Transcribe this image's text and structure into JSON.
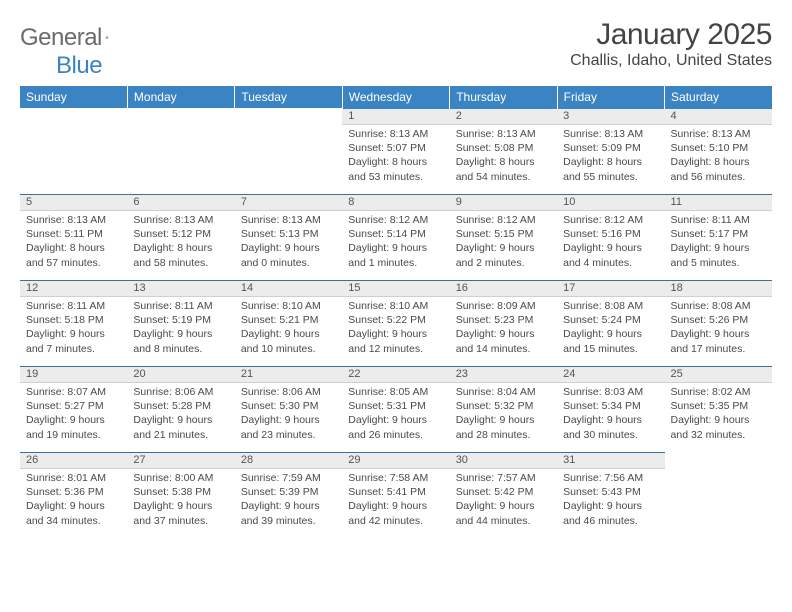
{
  "logo": {
    "part1": "General",
    "part2": "Blue"
  },
  "title": "January 2025",
  "location": "Challis, Idaho, United States",
  "colors": {
    "header_bg": "#3b84c4",
    "daynum_bg": "#ececec",
    "rule": "#3b6fa0",
    "text": "#4a4a4a",
    "logo_gray": "#6b6b6b",
    "logo_blue": "#3b84c4"
  },
  "weekdays": [
    "Sunday",
    "Monday",
    "Tuesday",
    "Wednesday",
    "Thursday",
    "Friday",
    "Saturday"
  ],
  "weeks": [
    [
      null,
      null,
      null,
      {
        "n": "1",
        "sunrise": "8:13 AM",
        "sunset": "5:07 PM",
        "dl_h": "8",
        "dl_m": "53"
      },
      {
        "n": "2",
        "sunrise": "8:13 AM",
        "sunset": "5:08 PM",
        "dl_h": "8",
        "dl_m": "54"
      },
      {
        "n": "3",
        "sunrise": "8:13 AM",
        "sunset": "5:09 PM",
        "dl_h": "8",
        "dl_m": "55"
      },
      {
        "n": "4",
        "sunrise": "8:13 AM",
        "sunset": "5:10 PM",
        "dl_h": "8",
        "dl_m": "56"
      }
    ],
    [
      {
        "n": "5",
        "sunrise": "8:13 AM",
        "sunset": "5:11 PM",
        "dl_h": "8",
        "dl_m": "57"
      },
      {
        "n": "6",
        "sunrise": "8:13 AM",
        "sunset": "5:12 PM",
        "dl_h": "8",
        "dl_m": "58"
      },
      {
        "n": "7",
        "sunrise": "8:13 AM",
        "sunset": "5:13 PM",
        "dl_h": "9",
        "dl_m": "0"
      },
      {
        "n": "8",
        "sunrise": "8:12 AM",
        "sunset": "5:14 PM",
        "dl_h": "9",
        "dl_m": "1"
      },
      {
        "n": "9",
        "sunrise": "8:12 AM",
        "sunset": "5:15 PM",
        "dl_h": "9",
        "dl_m": "2"
      },
      {
        "n": "10",
        "sunrise": "8:12 AM",
        "sunset": "5:16 PM",
        "dl_h": "9",
        "dl_m": "4"
      },
      {
        "n": "11",
        "sunrise": "8:11 AM",
        "sunset": "5:17 PM",
        "dl_h": "9",
        "dl_m": "5"
      }
    ],
    [
      {
        "n": "12",
        "sunrise": "8:11 AM",
        "sunset": "5:18 PM",
        "dl_h": "9",
        "dl_m": "7"
      },
      {
        "n": "13",
        "sunrise": "8:11 AM",
        "sunset": "5:19 PM",
        "dl_h": "9",
        "dl_m": "8"
      },
      {
        "n": "14",
        "sunrise": "8:10 AM",
        "sunset": "5:21 PM",
        "dl_h": "9",
        "dl_m": "10"
      },
      {
        "n": "15",
        "sunrise": "8:10 AM",
        "sunset": "5:22 PM",
        "dl_h": "9",
        "dl_m": "12"
      },
      {
        "n": "16",
        "sunrise": "8:09 AM",
        "sunset": "5:23 PM",
        "dl_h": "9",
        "dl_m": "14"
      },
      {
        "n": "17",
        "sunrise": "8:08 AM",
        "sunset": "5:24 PM",
        "dl_h": "9",
        "dl_m": "15"
      },
      {
        "n": "18",
        "sunrise": "8:08 AM",
        "sunset": "5:26 PM",
        "dl_h": "9",
        "dl_m": "17"
      }
    ],
    [
      {
        "n": "19",
        "sunrise": "8:07 AM",
        "sunset": "5:27 PM",
        "dl_h": "9",
        "dl_m": "19"
      },
      {
        "n": "20",
        "sunrise": "8:06 AM",
        "sunset": "5:28 PM",
        "dl_h": "9",
        "dl_m": "21"
      },
      {
        "n": "21",
        "sunrise": "8:06 AM",
        "sunset": "5:30 PM",
        "dl_h": "9",
        "dl_m": "23"
      },
      {
        "n": "22",
        "sunrise": "8:05 AM",
        "sunset": "5:31 PM",
        "dl_h": "9",
        "dl_m": "26"
      },
      {
        "n": "23",
        "sunrise": "8:04 AM",
        "sunset": "5:32 PM",
        "dl_h": "9",
        "dl_m": "28"
      },
      {
        "n": "24",
        "sunrise": "8:03 AM",
        "sunset": "5:34 PM",
        "dl_h": "9",
        "dl_m": "30"
      },
      {
        "n": "25",
        "sunrise": "8:02 AM",
        "sunset": "5:35 PM",
        "dl_h": "9",
        "dl_m": "32"
      }
    ],
    [
      {
        "n": "26",
        "sunrise": "8:01 AM",
        "sunset": "5:36 PM",
        "dl_h": "9",
        "dl_m": "34"
      },
      {
        "n": "27",
        "sunrise": "8:00 AM",
        "sunset": "5:38 PM",
        "dl_h": "9",
        "dl_m": "37"
      },
      {
        "n": "28",
        "sunrise": "7:59 AM",
        "sunset": "5:39 PM",
        "dl_h": "9",
        "dl_m": "39"
      },
      {
        "n": "29",
        "sunrise": "7:58 AM",
        "sunset": "5:41 PM",
        "dl_h": "9",
        "dl_m": "42"
      },
      {
        "n": "30",
        "sunrise": "7:57 AM",
        "sunset": "5:42 PM",
        "dl_h": "9",
        "dl_m": "44"
      },
      {
        "n": "31",
        "sunrise": "7:56 AM",
        "sunset": "5:43 PM",
        "dl_h": "9",
        "dl_m": "46"
      },
      null
    ]
  ],
  "labels": {
    "sunrise": "Sunrise:",
    "sunset": "Sunset:",
    "daylight_prefix": "Daylight:",
    "hours_word": "hours",
    "and_word": "and",
    "minutes_word": "minutes."
  }
}
